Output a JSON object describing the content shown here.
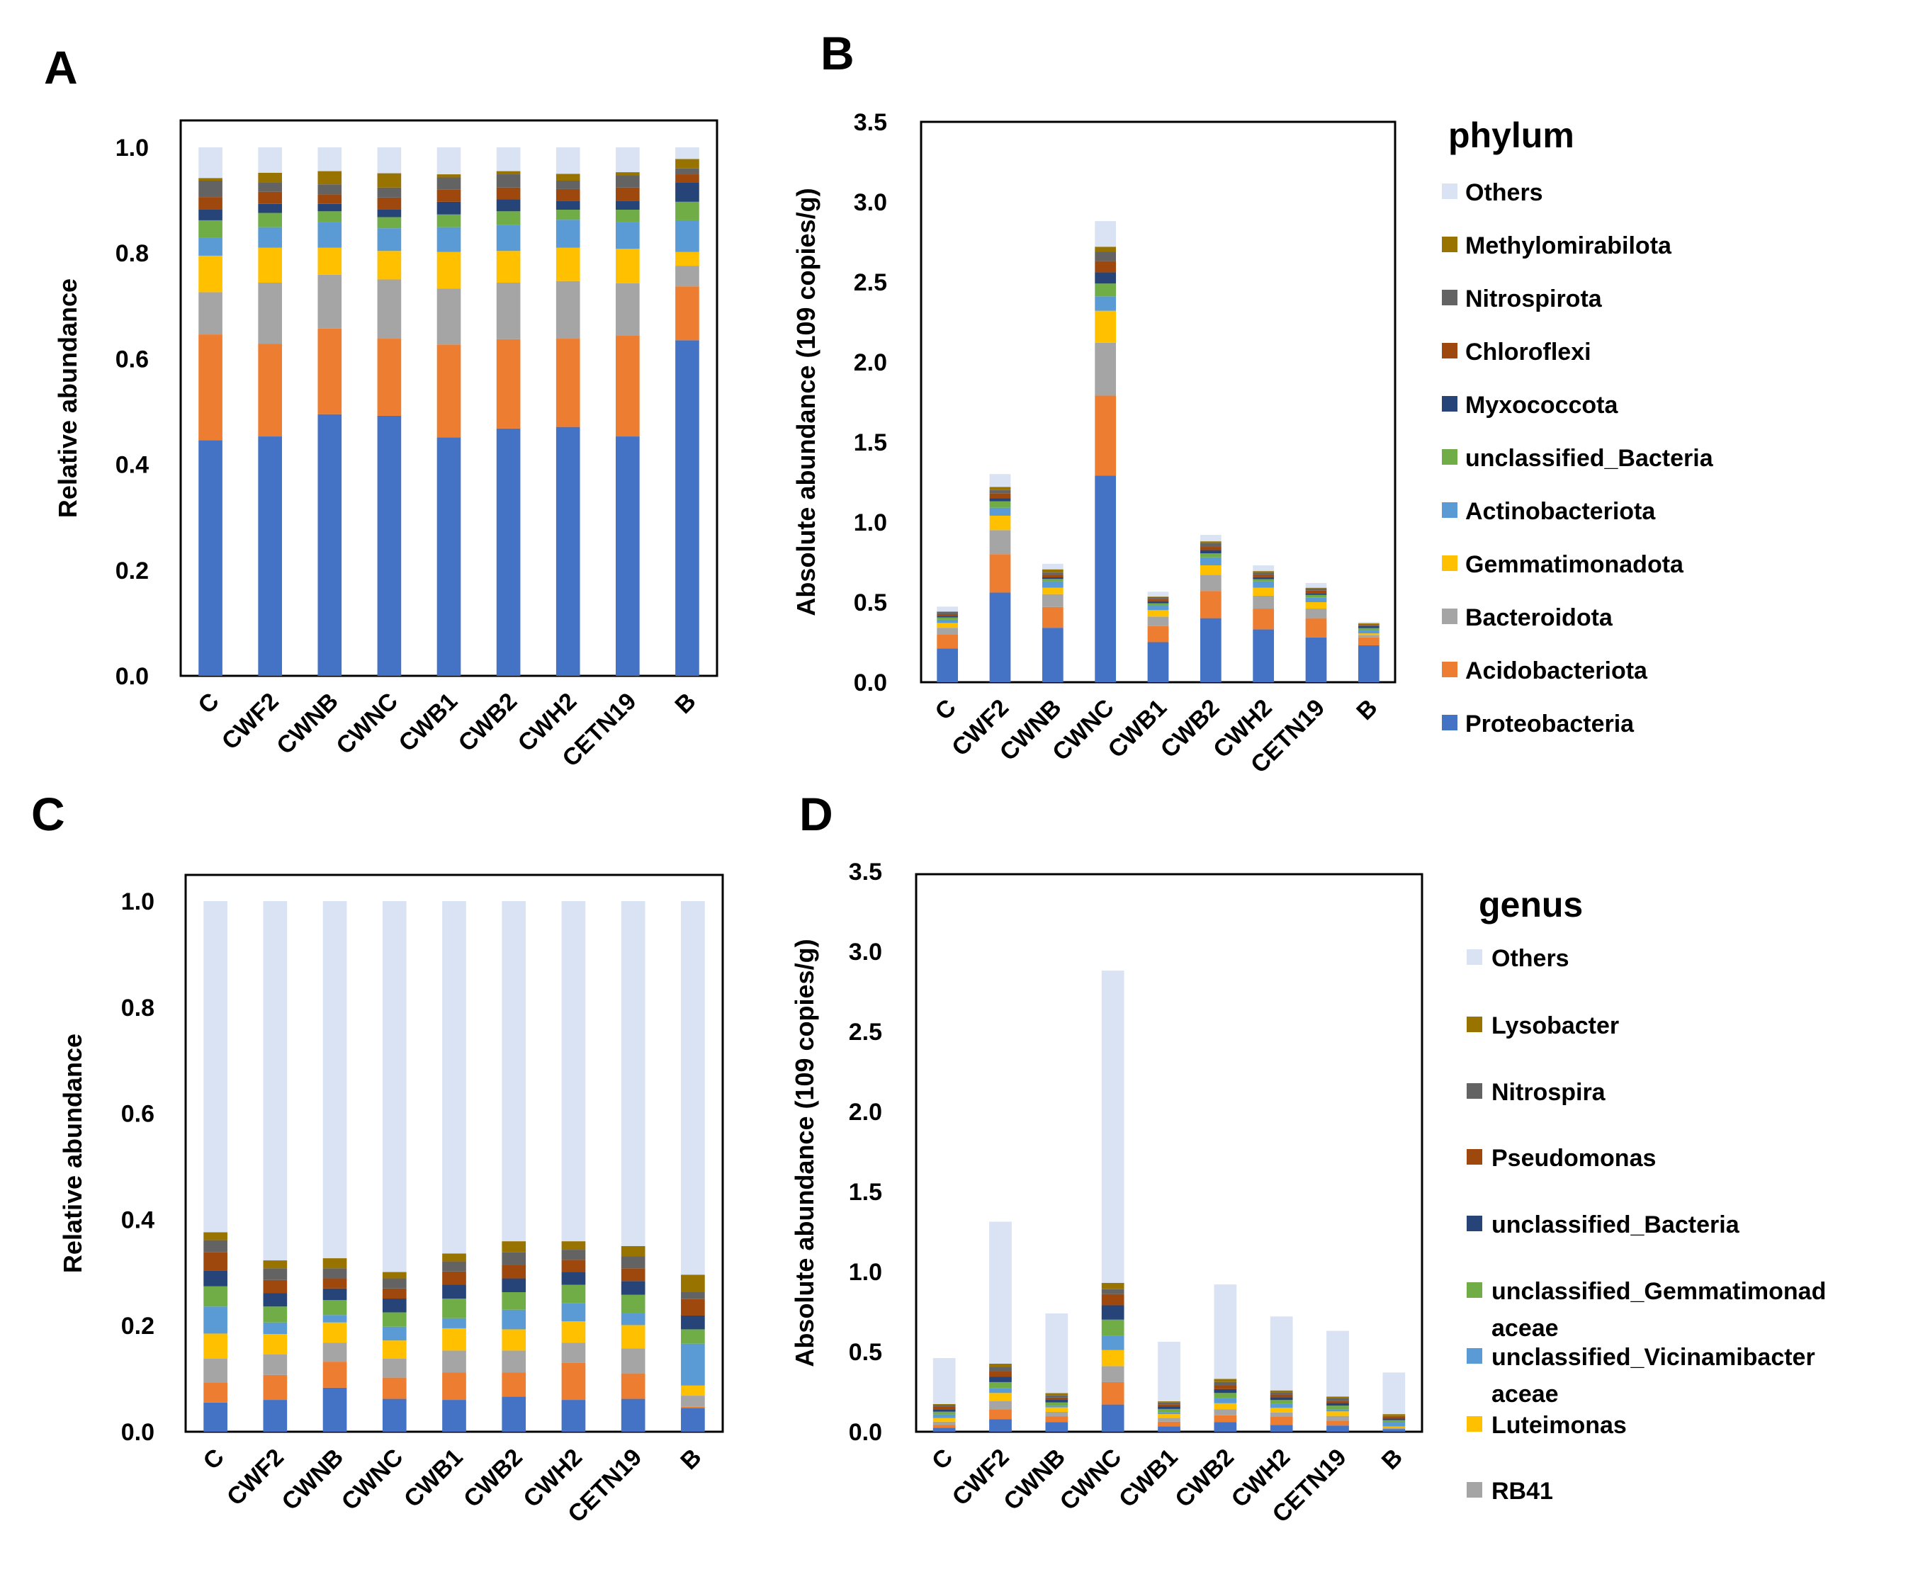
{
  "panel_letters": [
    "A",
    "B",
    "C",
    "D"
  ],
  "colors": {
    "Proteobacteria": "#4472C4",
    "Acidobacteriota": "#ED7D31",
    "Bacteroidota": "#A5A5A5",
    "Gemmatimonadota": "#FFC000",
    "Actinobacteriota": "#5B9BD5",
    "unclassified_Bacteria_green": "#70AD47",
    "Myxococcota": "#264478",
    "Chloroflexi": "#9E480E",
    "Nitrospirota": "#636363",
    "Methylomirabilota": "#997300",
    "Others": "#DAE3F3"
  },
  "legends": [
    {
      "title": "phylum",
      "items": [
        {
          "label": "Others",
          "color": "#DAE3F3"
        },
        {
          "label": "Methylomirabilota",
          "color": "#997300"
        },
        {
          "label": "Nitrospirota",
          "color": "#636363"
        },
        {
          "label": "Chloroflexi",
          "color": "#9E480E"
        },
        {
          "label": "Myxococcota",
          "color": "#264478"
        },
        {
          "label": "unclassified_Bacteria",
          "color": "#70AD47"
        },
        {
          "label": "Actinobacteriota",
          "color": "#5B9BD5"
        },
        {
          "label": "Gemmatimonadota",
          "color": "#FFC000"
        },
        {
          "label": "Bacteroidota",
          "color": "#A5A5A5"
        },
        {
          "label": "Acidobacteriota",
          "color": "#ED7D31"
        },
        {
          "label": "Proteobacteria",
          "color": "#4472C4"
        }
      ]
    },
    {
      "title": "genus",
      "items": [
        {
          "label": "Others",
          "color": "#DAE3F3"
        },
        {
          "label": "Lysobacter",
          "color": "#997300"
        },
        {
          "label": "Nitrospira",
          "color": "#636363"
        },
        {
          "label": "Pseudomonas",
          "color": "#9E480E"
        },
        {
          "label": "unclassified_Bacteria",
          "color": "#264478"
        },
        {
          "label": "unclassified_Gemmatimonad",
          "label2": "aceae",
          "color": "#70AD47"
        },
        {
          "label": "unclassified_Vicinamibacter",
          "label2": "aceae",
          "color": "#5B9BD5"
        },
        {
          "label": "Luteimonas",
          "color": "#FFC000"
        },
        {
          "label": "RB41",
          "color": "#A5A5A5"
        }
      ]
    }
  ],
  "chart_data": [
    {
      "panel": "A",
      "type": "bar",
      "stacked": true,
      "title": "",
      "xlabel": "",
      "ylabel": "Relative abundance",
      "ylim": [
        0,
        1.0
      ],
      "yticks": [
        "0.0",
        "0.2",
        "0.4",
        "0.6",
        "0.8",
        "1.0"
      ],
      "ytick_values": [
        0,
        0.2,
        0.4,
        0.6,
        0.8,
        1.0
      ],
      "categories": [
        "C",
        "CWF2",
        "CWNB",
        "CWNC",
        "CWB1",
        "CWB2",
        "CWH2",
        "CETN19",
        "B"
      ],
      "legend": "right (phylum)",
      "series": [
        {
          "name": "Proteobacteria",
          "color": "#4472C4",
          "values": [
            0.446,
            0.453,
            0.495,
            0.492,
            0.451,
            0.468,
            0.471,
            0.453,
            0.635
          ]
        },
        {
          "name": "Acidobacteriota",
          "color": "#ED7D31",
          "values": [
            0.2,
            0.175,
            0.162,
            0.146,
            0.176,
            0.169,
            0.167,
            0.191,
            0.102
          ]
        },
        {
          "name": "Bacteroidota",
          "color": "#A5A5A5",
          "values": [
            0.08,
            0.116,
            0.102,
            0.112,
            0.106,
            0.107,
            0.109,
            0.099,
            0.039
          ]
        },
        {
          "name": "Gemmatimonadota",
          "color": "#FFC000",
          "values": [
            0.069,
            0.066,
            0.051,
            0.054,
            0.069,
            0.06,
            0.063,
            0.065,
            0.026
          ]
        },
        {
          "name": "Actinobacteriota",
          "color": "#5B9BD5",
          "values": [
            0.034,
            0.039,
            0.048,
            0.043,
            0.047,
            0.049,
            0.053,
            0.05,
            0.06
          ]
        },
        {
          "name": "unclassified_Bacteria",
          "color": "#70AD47",
          "values": [
            0.033,
            0.027,
            0.021,
            0.021,
            0.024,
            0.026,
            0.019,
            0.024,
            0.035
          ]
        },
        {
          "name": "Myxococcota",
          "color": "#264478",
          "values": [
            0.021,
            0.017,
            0.014,
            0.015,
            0.024,
            0.023,
            0.017,
            0.017,
            0.036
          ]
        },
        {
          "name": "Chloroflexi",
          "color": "#9E480E",
          "values": [
            0.023,
            0.023,
            0.018,
            0.022,
            0.023,
            0.022,
            0.022,
            0.025,
            0.016
          ]
        },
        {
          "name": "Nitrospirota",
          "color": "#636363",
          "values": [
            0.031,
            0.017,
            0.019,
            0.019,
            0.023,
            0.025,
            0.016,
            0.023,
            0.011
          ]
        },
        {
          "name": "Methylomirabilota",
          "color": "#997300",
          "values": [
            0.005,
            0.019,
            0.025,
            0.027,
            0.006,
            0.006,
            0.013,
            0.006,
            0.018
          ]
        },
        {
          "name": "Others",
          "color": "#DAE3F3",
          "values": [
            0.058,
            0.048,
            0.045,
            0.049,
            0.051,
            0.045,
            0.05,
            0.047,
            0.022
          ]
        }
      ]
    },
    {
      "panel": "B",
      "type": "bar",
      "stacked": true,
      "title": "",
      "xlabel": "",
      "ylabel": "Absolute abundance (109 copies/g)",
      "ylim": [
        0,
        3.5
      ],
      "yticks": [
        "0.0",
        "0.5",
        "1.0",
        "1.5",
        "2.0",
        "2.5",
        "3.0",
        "3.5"
      ],
      "ytick_values": [
        0,
        0.5,
        1.0,
        1.5,
        2.0,
        2.5,
        3.0,
        3.5
      ],
      "categories": [
        "C",
        "CWF2",
        "CWNB",
        "CWNC",
        "CWB1",
        "CWB2",
        "CWH2",
        "CETN19",
        "B"
      ],
      "legend": "right (phylum)",
      "series": [
        {
          "name": "Proteobacteria",
          "color": "#4472C4",
          "values": [
            0.21,
            0.56,
            0.34,
            1.29,
            0.25,
            0.4,
            0.33,
            0.28,
            0.23
          ]
        },
        {
          "name": "Acidobacteriota",
          "color": "#ED7D31",
          "values": [
            0.09,
            0.24,
            0.13,
            0.5,
            0.1,
            0.17,
            0.13,
            0.12,
            0.05
          ]
        },
        {
          "name": "Bacteroidota",
          "color": "#A5A5A5",
          "values": [
            0.04,
            0.15,
            0.08,
            0.33,
            0.06,
            0.1,
            0.08,
            0.06,
            0.015
          ]
        },
        {
          "name": "Gemmatimonadota",
          "color": "#FFC000",
          "values": [
            0.03,
            0.09,
            0.04,
            0.2,
            0.04,
            0.06,
            0.05,
            0.04,
            0.01
          ]
        },
        {
          "name": "Actinobacteriota",
          "color": "#5B9BD5",
          "values": [
            0.02,
            0.05,
            0.04,
            0.09,
            0.03,
            0.05,
            0.04,
            0.03,
            0.02
          ]
        },
        {
          "name": "unclassified_Bacteria",
          "color": "#70AD47",
          "values": [
            0.015,
            0.04,
            0.015,
            0.08,
            0.013,
            0.025,
            0.014,
            0.015,
            0.013
          ]
        },
        {
          "name": "Myxococcota",
          "color": "#264478",
          "values": [
            0.01,
            0.02,
            0.01,
            0.07,
            0.013,
            0.02,
            0.012,
            0.011,
            0.013
          ]
        },
        {
          "name": "Chloroflexi",
          "color": "#9E480E",
          "values": [
            0.01,
            0.03,
            0.015,
            0.07,
            0.013,
            0.02,
            0.016,
            0.016,
            0.006
          ]
        },
        {
          "name": "Nitrospirota",
          "color": "#636363",
          "values": [
            0.014,
            0.02,
            0.015,
            0.06,
            0.013,
            0.025,
            0.012,
            0.014,
            0.004
          ]
        },
        {
          "name": "Methylomirabilota",
          "color": "#997300",
          "values": [
            0.003,
            0.02,
            0.02,
            0.03,
            0.003,
            0.01,
            0.01,
            0.004,
            0.007
          ]
        },
        {
          "name": "Others",
          "color": "#DAE3F3",
          "values": [
            0.03,
            0.08,
            0.035,
            0.16,
            0.03,
            0.04,
            0.036,
            0.03,
            0.008
          ]
        }
      ]
    },
    {
      "panel": "C",
      "type": "bar",
      "stacked": true,
      "title": "",
      "xlabel": "",
      "ylabel": "Relative abundance",
      "ylim": [
        0,
        1.0
      ],
      "yticks": [
        "0.0",
        "0.2",
        "0.4",
        "0.6",
        "0.8",
        "1.0"
      ],
      "ytick_values": [
        0,
        0.2,
        0.4,
        0.6,
        0.8,
        1.0
      ],
      "categories": [
        "C",
        "CWF2",
        "CWNB",
        "CWNC",
        "CWB1",
        "CWB2",
        "CWH2",
        "CETN19",
        "B"
      ],
      "legend": "right (genus)",
      "series": [
        {
          "name": "",
          "color": "#4472C4",
          "values": [
            0.055,
            0.06,
            0.083,
            0.062,
            0.06,
            0.066,
            0.06,
            0.062,
            0.045
          ]
        },
        {
          "name": "",
          "color": "#ED7D31",
          "values": [
            0.038,
            0.047,
            0.049,
            0.04,
            0.052,
            0.046,
            0.07,
            0.048,
            0.002
          ]
        },
        {
          "name": "RB41",
          "color": "#A5A5A5",
          "values": [
            0.045,
            0.039,
            0.036,
            0.036,
            0.041,
            0.041,
            0.038,
            0.047,
            0.021
          ]
        },
        {
          "name": "Luteimonas",
          "color": "#FFC000",
          "values": [
            0.047,
            0.038,
            0.038,
            0.034,
            0.042,
            0.04,
            0.04,
            0.044,
            0.019
          ]
        },
        {
          "name": "unclassified_Vicinamibacteraceae",
          "color": "#5B9BD5",
          "values": [
            0.051,
            0.022,
            0.014,
            0.026,
            0.019,
            0.037,
            0.034,
            0.022,
            0.079
          ]
        },
        {
          "name": "unclassified_Gemmatimonadaceae",
          "color": "#70AD47",
          "values": [
            0.038,
            0.03,
            0.028,
            0.027,
            0.037,
            0.033,
            0.035,
            0.035,
            0.027
          ]
        },
        {
          "name": "unclassified_Bacteria",
          "color": "#264478",
          "values": [
            0.03,
            0.025,
            0.022,
            0.026,
            0.026,
            0.026,
            0.024,
            0.026,
            0.026
          ]
        },
        {
          "name": "Pseudomonas",
          "color": "#9E480E",
          "values": [
            0.034,
            0.025,
            0.019,
            0.019,
            0.025,
            0.026,
            0.023,
            0.024,
            0.031
          ]
        },
        {
          "name": "Nitrospira",
          "color": "#636363",
          "values": [
            0.023,
            0.022,
            0.019,
            0.019,
            0.019,
            0.023,
            0.019,
            0.023,
            0.013
          ]
        },
        {
          "name": "Lysobacter",
          "color": "#997300",
          "values": [
            0.015,
            0.015,
            0.019,
            0.012,
            0.015,
            0.021,
            0.016,
            0.019,
            0.033
          ]
        },
        {
          "name": "Others",
          "color": "#DAE3F3",
          "values": [
            0.624,
            0.677,
            0.673,
            0.699,
            0.664,
            0.641,
            0.641,
            0.65,
            0.704
          ]
        }
      ]
    },
    {
      "panel": "D",
      "type": "bar",
      "stacked": true,
      "title": "",
      "xlabel": "",
      "ylabel": "Absolute abundance (109 copies/g)",
      "ylim": [
        0,
        3.5
      ],
      "yticks": [
        "0.0",
        "0.5",
        "1.0",
        "1.5",
        "2.0",
        "2.5",
        "3.0",
        "3.5"
      ],
      "ytick_values": [
        0,
        0.5,
        1.0,
        1.5,
        2.0,
        2.5,
        3.0,
        3.5
      ],
      "categories": [
        "C",
        "CWF2",
        "CWNB",
        "CWNC",
        "CWB1",
        "CWB2",
        "CWH2",
        "CETN19",
        "B"
      ],
      "legend": "right (genus)",
      "series": [
        {
          "name": "",
          "color": "#4472C4",
          "values": [
            0.025,
            0.079,
            0.061,
            0.17,
            0.034,
            0.061,
            0.043,
            0.039,
            0.017
          ]
        },
        {
          "name": "",
          "color": "#ED7D31",
          "values": [
            0.017,
            0.062,
            0.036,
            0.14,
            0.029,
            0.042,
            0.05,
            0.03,
            0.001
          ]
        },
        {
          "name": "RB41",
          "color": "#A5A5A5",
          "values": [
            0.021,
            0.051,
            0.027,
            0.1,
            0.023,
            0.038,
            0.027,
            0.03,
            0.008
          ]
        },
        {
          "name": "Luteimonas",
          "color": "#FFC000",
          "values": [
            0.022,
            0.05,
            0.028,
            0.1,
            0.024,
            0.037,
            0.029,
            0.028,
            0.007
          ]
        },
        {
          "name": "unclassified_Vicinamibacteraceae",
          "color": "#5B9BD5",
          "values": [
            0.023,
            0.029,
            0.01,
            0.09,
            0.011,
            0.034,
            0.024,
            0.014,
            0.029
          ]
        },
        {
          "name": "unclassified_Gemmatimonadaceae",
          "color": "#70AD47",
          "values": [
            0.017,
            0.039,
            0.021,
            0.1,
            0.021,
            0.03,
            0.025,
            0.022,
            0.01
          ]
        },
        {
          "name": "unclassified_Bacteria",
          "color": "#264478",
          "values": [
            0.014,
            0.033,
            0.016,
            0.09,
            0.015,
            0.024,
            0.017,
            0.016,
            0.01
          ]
        },
        {
          "name": "Pseudomonas",
          "color": "#9E480E",
          "values": [
            0.016,
            0.033,
            0.014,
            0.07,
            0.014,
            0.024,
            0.017,
            0.015,
            0.011
          ]
        },
        {
          "name": "Nitrospira",
          "color": "#636363",
          "values": [
            0.011,
            0.029,
            0.014,
            0.03,
            0.011,
            0.021,
            0.014,
            0.014,
            0.005
          ]
        },
        {
          "name": "Lysobacter",
          "color": "#997300",
          "values": [
            0.007,
            0.02,
            0.014,
            0.04,
            0.008,
            0.019,
            0.012,
            0.012,
            0.012
          ]
        },
        {
          "name": "Others",
          "color": "#DAE3F3",
          "values": [
            0.287,
            0.887,
            0.498,
            1.95,
            0.372,
            0.59,
            0.462,
            0.41,
            0.26
          ]
        }
      ]
    }
  ]
}
